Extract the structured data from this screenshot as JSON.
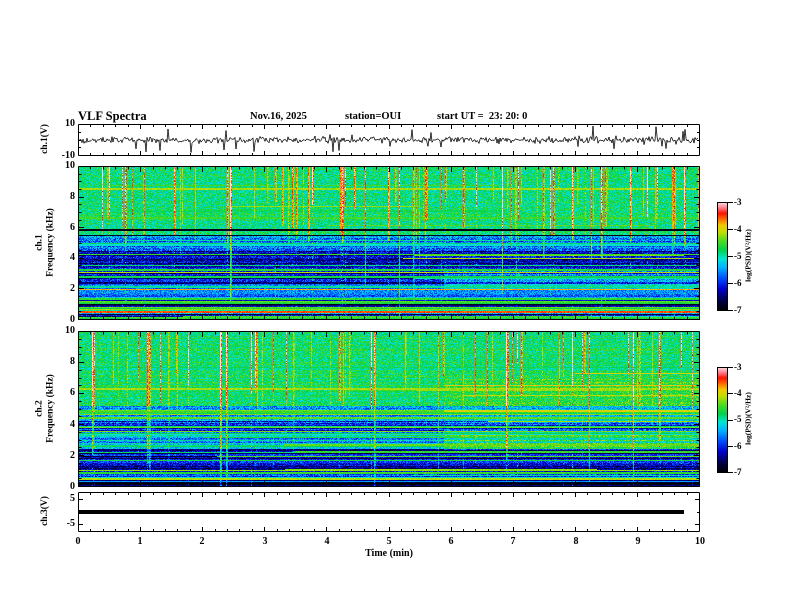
{
  "title": {
    "main": "VLF Spectra",
    "date": "Nov.16, 2025",
    "station": "station=OUI",
    "start_ut": "start UT =  23: 20: 0"
  },
  "xaxis": {
    "label": "Time (min)",
    "tick_labels": [
      "0",
      "1",
      "2",
      "3",
      "4",
      "5",
      "6",
      "7",
      "8",
      "9",
      "10"
    ]
  },
  "panels": {
    "wave": {
      "axis_label": "ch.1(V)",
      "tick_labels": [
        "10",
        "-10"
      ]
    },
    "spec1": {
      "axis_label_channel": "ch.1",
      "axis_label_freq": "Frequency (kHz)",
      "tick_labels": [
        "10",
        "8",
        "6",
        "4",
        "2",
        "0"
      ]
    },
    "spec2": {
      "axis_label_channel": "ch.2",
      "axis_label_freq": "Frequency (kHz)",
      "tick_labels": [
        "10",
        "8",
        "6",
        "4",
        "2",
        "0"
      ]
    },
    "ch3": {
      "axis_label": "ch.3(V)",
      "tick_labels": [
        "5",
        "-5"
      ]
    }
  },
  "colorbar": {
    "label": "log(PSD)(V²/Hz)",
    "tick_labels": [
      "-3",
      "-4",
      "-5",
      "-6",
      "-7"
    ]
  },
  "chart_data": {
    "value_range": [
      -7,
      -3
    ],
    "colormap_stops": [
      [
        0.0,
        "#000000"
      ],
      [
        0.1,
        "#000050"
      ],
      [
        0.2,
        "#0000d0"
      ],
      [
        0.3,
        "#0050ff"
      ],
      [
        0.4,
        "#00b4ff"
      ],
      [
        0.48,
        "#00e6d2"
      ],
      [
        0.56,
        "#00d24b"
      ],
      [
        0.65,
        "#55dc1e"
      ],
      [
        0.73,
        "#c8dc00"
      ],
      [
        0.79,
        "#f0c800"
      ],
      [
        0.85,
        "#ff6400"
      ],
      [
        0.9,
        "#ff1400"
      ],
      [
        0.95,
        "#ff7d8c"
      ],
      [
        1.0,
        "#ffdce1"
      ]
    ],
    "ch1_wave": {
      "type": "line",
      "ylim": [
        -10,
        10
      ],
      "xlim": [
        0,
        10
      ],
      "description": "noisy voltage trace centered on 0 V with impulsive spikes to about ±9 V",
      "seed": 101,
      "noise": 1.1,
      "spike_prob": 0.05,
      "spike_min": 2.5,
      "spike_max": 9.5
    },
    "spec1": {
      "type": "heatmap",
      "xlim": [
        0,
        10
      ],
      "flim": [
        0,
        10
      ],
      "zlim": [
        -7,
        -3
      ],
      "description": "ch.1 VLF spectrogram: green/yellow broadband noise above ~5.5 kHz with red sferic streaks, blue/dark background below 4.5 kHz crossed by many narrow green/yellow horizontal lines, cyan band near 1.3-2.3 kHz, dark-red line near 0.55 kHz",
      "seed": 7,
      "streak_prob": 0.13,
      "n_lines": 42,
      "bands": [
        [
          5.5,
          10.01,
          -4.85,
          0.8,
          0.25
        ],
        [
          4.5,
          5.5,
          -5.6,
          0.9,
          0.5
        ],
        [
          2.3,
          4.5,
          -6.25,
          0.9,
          0.7
        ],
        [
          1.3,
          2.3,
          -5.7,
          0.7,
          0.7
        ],
        [
          0.9,
          1.3,
          -6.5,
          0.6,
          0.8
        ],
        [
          -0.01,
          0.9,
          -6.1,
          0.9,
          1.6
        ]
      ],
      "extra_lines": [
        [
          0.55,
          -3.55,
          2,
          0,
          1
        ],
        [
          0.8,
          -4.4,
          1,
          0,
          1
        ],
        [
          1.05,
          -4.7,
          1,
          0,
          1
        ],
        [
          1.95,
          -3.8,
          1,
          0,
          1
        ],
        [
          3.05,
          -4.3,
          1,
          0,
          1
        ],
        [
          4.25,
          -4.6,
          1,
          0,
          1
        ],
        [
          0.12,
          -4.5,
          1,
          0,
          1
        ]
      ],
      "explicit_streaks": [
        {
          "x": 0.245,
          "s": 2.4,
          "d": 0.85
        },
        {
          "x": 0.075,
          "s": 1.8,
          "d": 0.5
        },
        {
          "x": 0.155,
          "s": 1.7,
          "d": 0.45
        },
        {
          "x": 0.345,
          "s": 1.5,
          "d": 0.4
        },
        {
          "x": 0.425,
          "s": 1.9,
          "d": 0.5
        },
        {
          "x": 0.62,
          "s": 1.6,
          "d": 0.4
        },
        {
          "x": 0.765,
          "s": 1.7,
          "d": 0.45
        },
        {
          "x": 0.56,
          "s": 1.5,
          "d": 0.35
        }
      ],
      "xmods": [
        {
          "x0": 0.59,
          "x1": 1,
          "f0": 2.0,
          "f1": 3.2,
          "dl": 0.5
        }
      ]
    },
    "spec2": {
      "type": "heatmap",
      "xlim": [
        0,
        10
      ],
      "flim": [
        0,
        10
      ],
      "zlim": [
        -7,
        -3
      ],
      "description": "ch.2 VLF spectrogram: green broadband noise above ~5 kHz, strong red streak near 2.3 min, green/cyan band near 2.4-3.3 kHz, dark blue below 2.4 kHz, extra red horizontal lines at 4-7 kHz after ~6 min",
      "seed": 21,
      "streak_prob": 0.11,
      "n_lines": 40,
      "bands": [
        [
          5.2,
          10.01,
          -4.8,
          0.75,
          0.3
        ],
        [
          4.2,
          5.2,
          -5.5,
          0.9,
          0.5
        ],
        [
          3.3,
          4.2,
          -6.0,
          0.9,
          0.8
        ],
        [
          2.4,
          3.3,
          -5.4,
          0.8,
          0.8
        ],
        [
          1.1,
          2.4,
          -6.3,
          0.8,
          0.9
        ],
        [
          0.45,
          1.1,
          -6.0,
          0.9,
          1.2
        ],
        [
          -0.01,
          0.45,
          -6.8,
          0.5,
          0.8
        ]
      ],
      "extra_lines": [
        [
          0.35,
          -5.5,
          1,
          0,
          1
        ],
        [
          0.9,
          -4.6,
          2,
          0,
          1
        ],
        [
          2.6,
          -4.8,
          1,
          0,
          1
        ],
        [
          6.5,
          -3.9,
          1,
          0.59,
          1
        ],
        [
          5.9,
          -4.1,
          1,
          0.62,
          1
        ],
        [
          4.9,
          -4.0,
          2,
          0.59,
          1
        ],
        [
          4.2,
          -4.2,
          1,
          0.66,
          1
        ],
        [
          7.3,
          -4.0,
          1,
          0.8,
          1
        ]
      ],
      "explicit_streaks": [
        {
          "x": 0.228,
          "s": 2.3,
          "d": 1
        },
        {
          "x": 0.238,
          "s": 2.0,
          "d": 1
        },
        {
          "x": 0.115,
          "s": 1.6,
          "d": 0.9
        },
        {
          "x": 0.935,
          "s": 1.8,
          "d": 0.7
        },
        {
          "x": 0.42,
          "s": 1.4,
          "d": 0.45
        }
      ],
      "xmods": [
        {
          "x0": 0.59,
          "x1": 1,
          "f0": 2.4,
          "f1": 3.6,
          "dl": 0.6
        },
        {
          "x0": 0.59,
          "x1": 1,
          "f0": 4.0,
          "f1": 7.0,
          "dl": 0.2
        }
      ]
    },
    "ch3_wave": {
      "type": "line",
      "ylim": [
        -8,
        8
      ],
      "xlim": [
        0,
        10
      ],
      "description": "flat thick trace at 0 V ending near 9.75 min",
      "value": 0,
      "x_end_frac": 0.975
    }
  }
}
